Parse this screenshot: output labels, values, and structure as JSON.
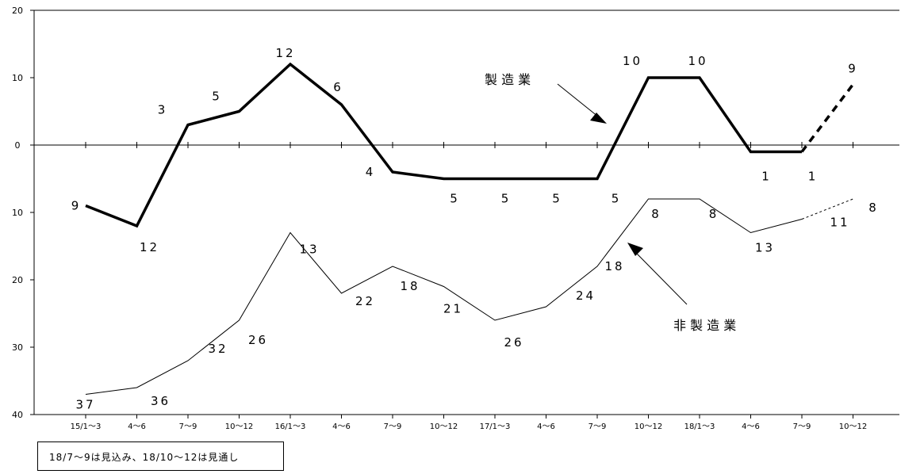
{
  "chart_data": {
    "type": "line",
    "categories": [
      "15/1～3",
      "4～6",
      "7～9",
      "10～12",
      "16/1～3",
      "4～6",
      "7～9",
      "10～12",
      "17/1～3",
      "4～6",
      "7～9",
      "10～12",
      "18/1～3",
      "4～6",
      "7～9",
      "10～12"
    ],
    "ylim": [
      -40,
      20
    ],
    "y_ticks": [
      20,
      10,
      0,
      -10,
      -20,
      -30,
      -40
    ],
    "y_tick_labels": [
      "20",
      "10",
      "0",
      "10",
      "20",
      "30",
      "40"
    ],
    "grid": false,
    "series": [
      {
        "name": "製 造 業",
        "values": [
          -9,
          -12,
          3,
          5,
          12,
          6,
          -4,
          -5,
          -5,
          -5,
          -5,
          10,
          10,
          -1,
          -1,
          9
        ],
        "labels": [
          "9",
          "12",
          "3",
          "5",
          "12",
          "6",
          "4",
          "5",
          "5",
          "5",
          "5",
          "10",
          "10",
          "1",
          "1",
          "9"
        ],
        "forecast_from_index": 14,
        "color": "#000000",
        "stroke": "bold"
      },
      {
        "name": "非 製 造 業",
        "values": [
          -37,
          -36,
          -32,
          -26,
          -13,
          -22,
          -18,
          -21,
          -26,
          -24,
          -18,
          -8,
          -8,
          -13,
          -11,
          -8
        ],
        "labels": [
          "37",
          "36",
          "32",
          "26",
          "13",
          "22",
          "18",
          "21",
          "26",
          "24",
          "18",
          "8",
          "8",
          "13",
          "11",
          "8"
        ],
        "forecast_from_index": 14,
        "color": "#000000",
        "stroke": "thin"
      }
    ],
    "note": "18/7～9は見込み、18/10～12は見通し"
  }
}
